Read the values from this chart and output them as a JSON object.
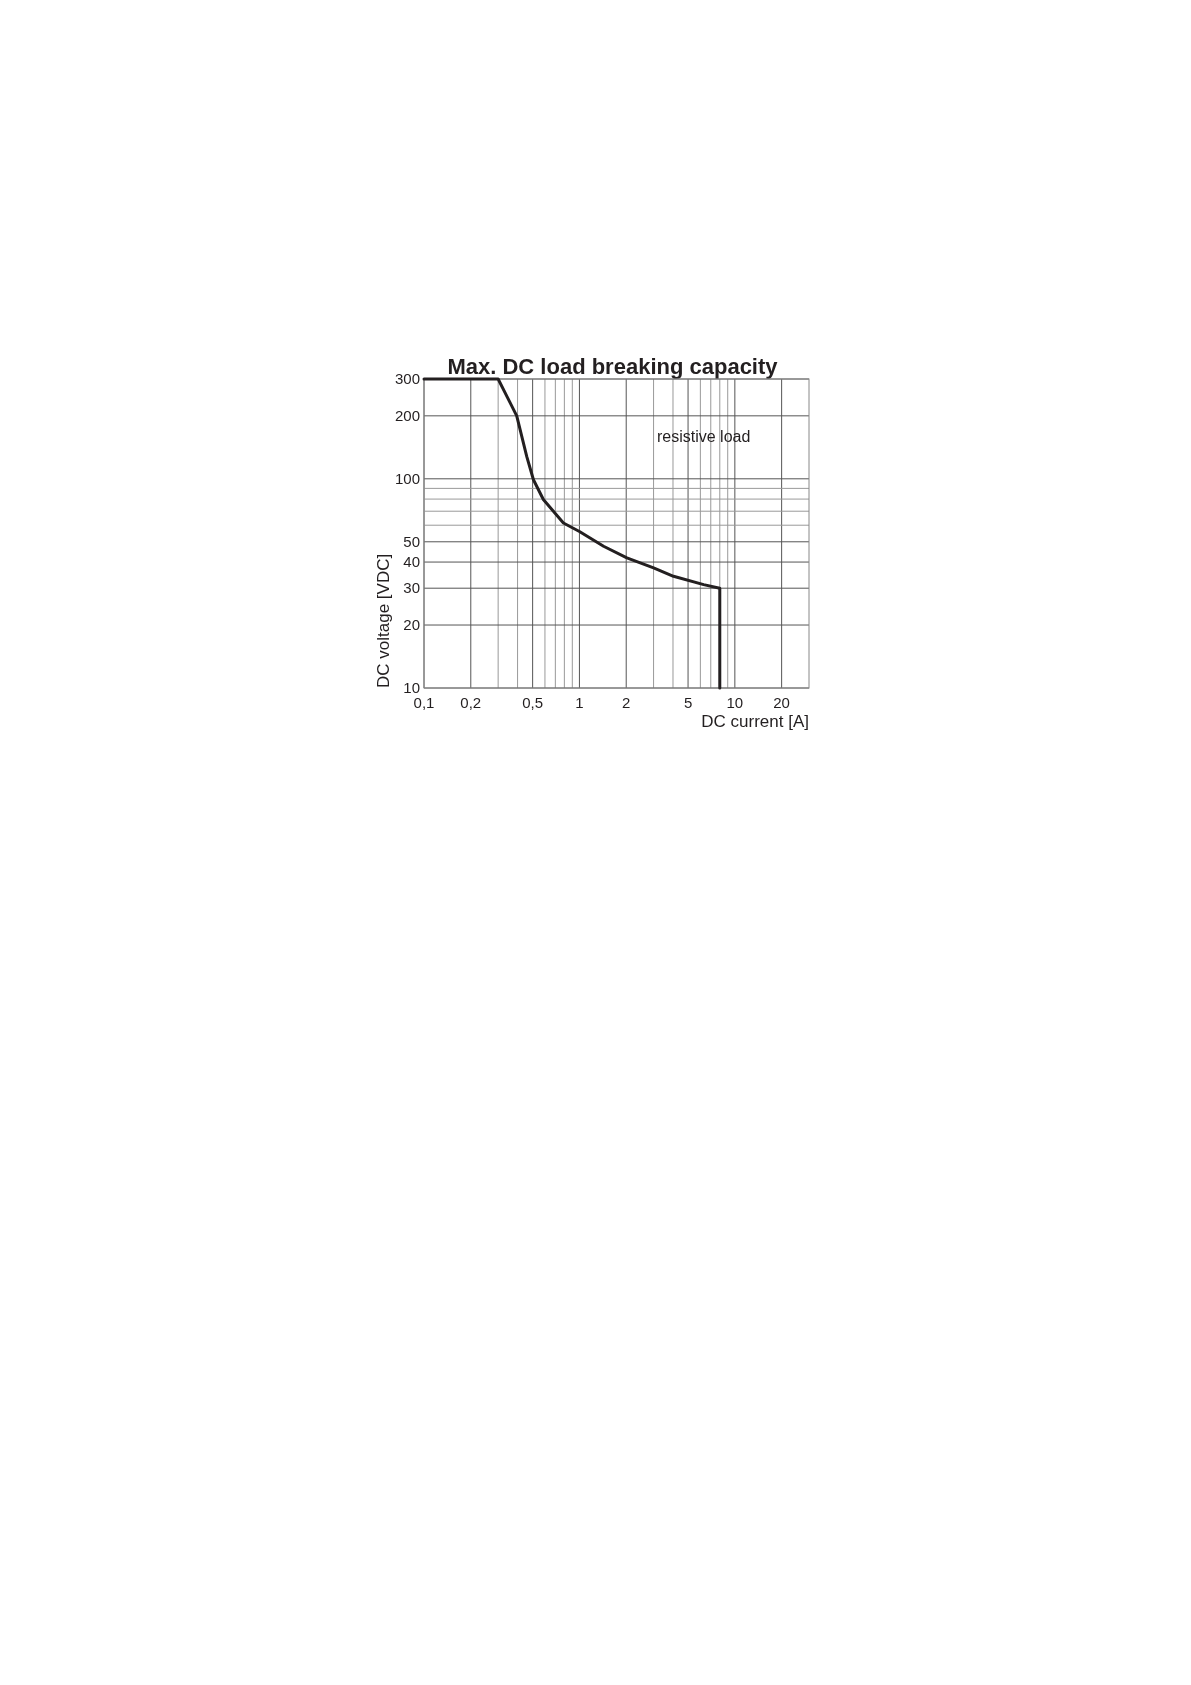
{
  "chart_data": {
    "type": "line",
    "title": "Max. DC load breaking capacity",
    "xlabel": "DC current [A]",
    "ylabel": "DC voltage [VDC]",
    "log": "xy",
    "grid": true,
    "marker": "none",
    "line_style": "solid",
    "xlim": [
      0.1,
      30
    ],
    "ylim": [
      10,
      300
    ],
    "xticks": [
      {
        "value": 0.1,
        "label": "0,1"
      },
      {
        "value": 0.2,
        "label": "0,2"
      },
      {
        "value": 0.3,
        "label": null
      },
      {
        "value": 0.4,
        "label": null
      },
      {
        "value": 0.5,
        "label": "0,5"
      },
      {
        "value": 0.6,
        "label": null
      },
      {
        "value": 0.7,
        "label": null
      },
      {
        "value": 0.8,
        "label": null
      },
      {
        "value": 0.9,
        "label": null
      },
      1,
      2,
      {
        "value": 3,
        "label": null
      },
      {
        "value": 4,
        "label": null
      },
      5,
      {
        "value": 6,
        "label": null
      },
      {
        "value": 7,
        "label": null
      },
      {
        "value": 8,
        "label": null
      },
      {
        "value": 9,
        "label": null
      },
      10,
      20
    ],
    "yticks": [
      10,
      20,
      30,
      40,
      50,
      {
        "value": 60,
        "label": null
      },
      {
        "value": 70,
        "label": null
      },
      {
        "value": 80,
        "label": null
      },
      {
        "value": 90,
        "label": null
      },
      100,
      200,
      300
    ],
    "series": [
      {
        "name": "resistive load",
        "color": "#231f20",
        "x": [
          0.1,
          0.3,
          0.395,
          0.458,
          0.506,
          0.586,
          0.789,
          1,
          1.43,
          2.02,
          3.0,
          4.03,
          6.3,
          8.0,
          8.0
        ],
        "values": [
          300,
          300,
          200,
          128,
          99,
          79.6,
          61.5,
          56,
          47.6,
          41.9,
          37.5,
          34.2,
          31.2,
          30,
          10
        ]
      }
    ]
  }
}
